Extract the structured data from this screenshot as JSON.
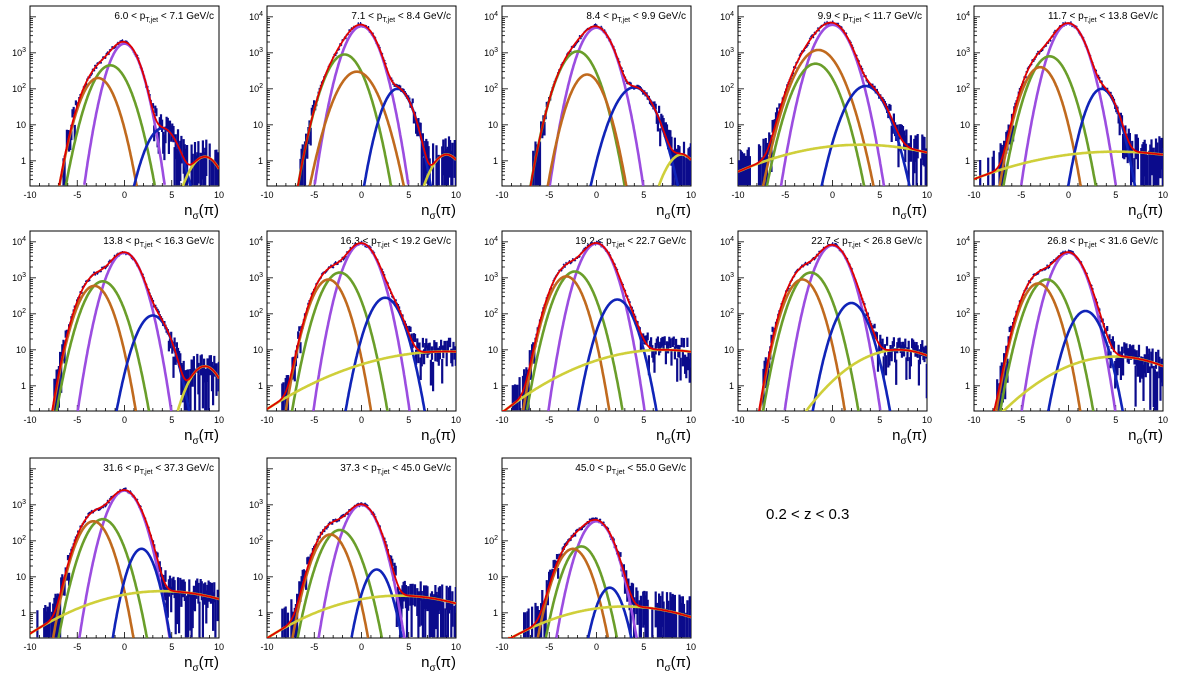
{
  "figure": {
    "z_range_label": "0.2 < z < 0.3",
    "x_axis_label": "nσ(π)"
  },
  "colors": {
    "data": "#0b0b8c",
    "total_fit": "#e00000",
    "pion": "#9b4de0",
    "kaon": "#6a9e2a",
    "proton": "#c06a1e",
    "electron": "#1024b8",
    "background": "#cfcf3a"
  },
  "chart_data": [
    {
      "type": "line",
      "panel_label": "6.0 < pT,jet < 7.1 GeV/c",
      "pt_lo": "6.0",
      "pt_hi": "7.1",
      "xlim": [
        -10,
        10
      ],
      "ylog": true,
      "ylim": [
        0.2,
        20000
      ],
      "yticks": [
        1,
        10,
        100,
        1000
      ],
      "series": [
        {
          "key": "pion",
          "mu": 0,
          "sigma": 1,
          "amp": 1800
        },
        {
          "key": "kaon",
          "mu": -1.5,
          "sigma": 1.2,
          "amp": 450
        },
        {
          "key": "proton",
          "mu": -2.8,
          "sigma": 1.1,
          "amp": 200
        },
        {
          "key": "electron",
          "mu": 4,
          "sigma": 1.1,
          "amp": 8
        },
        {
          "key": "background",
          "mu": 8.5,
          "sigma": 1.2,
          "amp": 1.3
        }
      ]
    },
    {
      "type": "line",
      "panel_label": "7.1 < pT,jet < 8.4 GeV/c",
      "pt_lo": "7.1",
      "pt_hi": "8.4",
      "xlim": [
        -10,
        10
      ],
      "ylog": true,
      "ylim": [
        0.2,
        20000
      ],
      "yticks": [
        1,
        10,
        100,
        1000,
        10000
      ],
      "series": [
        {
          "key": "pion",
          "mu": 0,
          "sigma": 1.1,
          "amp": 5500
        },
        {
          "key": "kaon",
          "mu": -1.8,
          "sigma": 1.2,
          "amp": 900
        },
        {
          "key": "proton",
          "mu": -0.5,
          "sigma": 1.3,
          "amp": 300
        },
        {
          "key": "electron",
          "mu": 3.8,
          "sigma": 1,
          "amp": 100
        },
        {
          "key": "background",
          "mu": 9,
          "sigma": 1.2,
          "amp": 1.5
        }
      ]
    },
    {
      "type": "line",
      "panel_label": "8.4 < pT,jet < 9.9 GeV/c",
      "pt_lo": "8.4",
      "pt_hi": "9.9",
      "xlim": [
        -10,
        10
      ],
      "ylog": true,
      "ylim": [
        0.2,
        20000
      ],
      "yticks": [
        1,
        10,
        100,
        1000,
        10000
      ],
      "series": [
        {
          "key": "pion",
          "mu": 0,
          "sigma": 1.1,
          "amp": 5000
        },
        {
          "key": "kaon",
          "mu": -2,
          "sigma": 1.2,
          "amp": 1100
        },
        {
          "key": "proton",
          "mu": -1,
          "sigma": 1.1,
          "amp": 250
        },
        {
          "key": "electron",
          "mu": 4,
          "sigma": 1.3,
          "amp": 110
        },
        {
          "key": "background",
          "mu": 9,
          "sigma": 1.2,
          "amp": 1.5
        }
      ]
    },
    {
      "type": "line",
      "panel_label": "9.9 < pT,jet < 11.7 GeV/c",
      "pt_lo": "9.9",
      "pt_hi": "11.7",
      "xlim": [
        -10,
        10
      ],
      "ylog": true,
      "ylim": [
        0.2,
        20000
      ],
      "yticks": [
        1,
        10,
        100,
        1000,
        10000
      ],
      "series": [
        {
          "key": "pion",
          "mu": 0,
          "sigma": 1.2,
          "amp": 6000
        },
        {
          "key": "kaon",
          "mu": -1.8,
          "sigma": 1.3,
          "amp": 500
        },
        {
          "key": "proton",
          "mu": -1.5,
          "sigma": 1.4,
          "amp": 1200
        },
        {
          "key": "electron",
          "mu": 3.5,
          "sigma": 1.3,
          "amp": 120
        },
        {
          "key": "background",
          "mu": 3,
          "sigma": 7,
          "amp": 2.8
        }
      ]
    },
    {
      "type": "line",
      "panel_label": "11.7 < pT,jet < 13.8 GeV/c",
      "pt_lo": "11.7",
      "pt_hi": "13.8",
      "xlim": [
        -10,
        10
      ],
      "ylog": true,
      "ylim": [
        0.2,
        20000
      ],
      "yticks": [
        1,
        10,
        100,
        1000,
        10000
      ],
      "series": [
        {
          "key": "pion",
          "mu": 0,
          "sigma": 1.1,
          "amp": 6500
        },
        {
          "key": "kaon",
          "mu": -2,
          "sigma": 1.2,
          "amp": 800
        },
        {
          "key": "proton",
          "mu": -3,
          "sigma": 1.1,
          "amp": 400
        },
        {
          "key": "electron",
          "mu": 3.5,
          "sigma": 1,
          "amp": 100
        },
        {
          "key": "background",
          "mu": 5,
          "sigma": 8,
          "amp": 1.8
        }
      ]
    },
    {
      "type": "line",
      "panel_label": "13.8 < pT,jet < 16.3 GeV/c",
      "pt_lo": "13.8",
      "pt_hi": "16.3",
      "xlim": [
        -10,
        10
      ],
      "ylog": true,
      "ylim": [
        0.2,
        20000
      ],
      "yticks": [
        1,
        10,
        100,
        1000,
        10000
      ],
      "series": [
        {
          "key": "pion",
          "mu": 0,
          "sigma": 1.1,
          "amp": 5000
        },
        {
          "key": "kaon",
          "mu": -2.3,
          "sigma": 1.2,
          "amp": 800
        },
        {
          "key": "proton",
          "mu": -3.2,
          "sigma": 1.1,
          "amp": 600
        },
        {
          "key": "electron",
          "mu": 3,
          "sigma": 1.1,
          "amp": 90
        },
        {
          "key": "background",
          "mu": 8.5,
          "sigma": 1.2,
          "amp": 3.5
        }
      ]
    },
    {
      "type": "line",
      "panel_label": "16.3 < pT,jet < 19.2 GeV/c",
      "pt_lo": "16.3",
      "pt_hi": "19.2",
      "xlim": [
        -10,
        10
      ],
      "ylog": true,
      "ylim": [
        0.2,
        20000
      ],
      "yticks": [
        1,
        10,
        100,
        1000,
        10000
      ],
      "series": [
        {
          "key": "pion",
          "mu": 0,
          "sigma": 1.1,
          "amp": 9000
        },
        {
          "key": "kaon",
          "mu": -2.3,
          "sigma": 1.2,
          "amp": 1400
        },
        {
          "key": "proton",
          "mu": -3.5,
          "sigma": 1.1,
          "amp": 900
        },
        {
          "key": "electron",
          "mu": 2.5,
          "sigma": 1.1,
          "amp": 280
        },
        {
          "key": "background",
          "mu": 9,
          "sigma": 7,
          "amp": 9
        }
      ]
    },
    {
      "type": "line",
      "panel_label": "19.2 < pT,jet < 22.7 GeV/c",
      "pt_lo": "19.2",
      "pt_hi": "22.7",
      "xlim": [
        -10,
        10
      ],
      "ylog": true,
      "ylim": [
        0.2,
        20000
      ],
      "yticks": [
        1,
        10,
        100,
        1000,
        10000
      ],
      "series": [
        {
          "key": "pion",
          "mu": 0,
          "sigma": 1.1,
          "amp": 9000
        },
        {
          "key": "kaon",
          "mu": -2.3,
          "sigma": 1.2,
          "amp": 1500
        },
        {
          "key": "proton",
          "mu": -3.2,
          "sigma": 1.1,
          "amp": 1100
        },
        {
          "key": "electron",
          "mu": 2.2,
          "sigma": 1.1,
          "amp": 250
        },
        {
          "key": "background",
          "mu": 7,
          "sigma": 6,
          "amp": 10
        }
      ]
    },
    {
      "type": "line",
      "panel_label": "22.7 < pT,jet < 26.8 GeV/c",
      "pt_lo": "22.7",
      "pt_hi": "26.8",
      "xlim": [
        -10,
        10
      ],
      "ylog": true,
      "ylim": [
        0.2,
        20000
      ],
      "yticks": [
        1,
        10,
        100,
        1000,
        10000
      ],
      "series": [
        {
          "key": "pion",
          "mu": 0,
          "sigma": 1.1,
          "amp": 8000
        },
        {
          "key": "kaon",
          "mu": -2.3,
          "sigma": 1.2,
          "amp": 1400
        },
        {
          "key": "proton",
          "mu": -3.2,
          "sigma": 1.1,
          "amp": 900
        },
        {
          "key": "electron",
          "mu": 2,
          "sigma": 1.1,
          "amp": 200
        },
        {
          "key": "background",
          "mu": 7,
          "sigma": 3.5,
          "amp": 10
        }
      ]
    },
    {
      "type": "line",
      "panel_label": "26.8 < pT,jet < 31.6 GeV/c",
      "pt_lo": "26.8",
      "pt_hi": "31.6",
      "xlim": [
        -10,
        10
      ],
      "ylog": true,
      "ylim": [
        0.2,
        20000
      ],
      "yticks": [
        1,
        10,
        100,
        1000,
        10000
      ],
      "series": [
        {
          "key": "pion",
          "mu": 0,
          "sigma": 1.1,
          "amp": 5000
        },
        {
          "key": "kaon",
          "mu": -2.3,
          "sigma": 1.2,
          "amp": 900
        },
        {
          "key": "proton",
          "mu": -3.2,
          "sigma": 1.1,
          "amp": 700
        },
        {
          "key": "electron",
          "mu": 1.8,
          "sigma": 1.1,
          "amp": 120
        },
        {
          "key": "background",
          "mu": 5,
          "sigma": 4.5,
          "amp": 6.5
        }
      ]
    },
    {
      "type": "line",
      "panel_label": "31.6 < pT,jet < 37.3 GeV/c",
      "pt_lo": "31.6",
      "pt_hi": "37.3",
      "xlim": [
        -10,
        10
      ],
      "ylog": true,
      "ylim": [
        0.2,
        20000
      ],
      "yticks": [
        1,
        10,
        100,
        1000
      ],
      "series": [
        {
          "key": "pion",
          "mu": 0,
          "sigma": 1.1,
          "amp": 2500
        },
        {
          "key": "kaon",
          "mu": -2.3,
          "sigma": 1.2,
          "amp": 400
        },
        {
          "key": "proton",
          "mu": -3.3,
          "sigma": 1.1,
          "amp": 350
        },
        {
          "key": "electron",
          "mu": 1.8,
          "sigma": 0.9,
          "amp": 60
        },
        {
          "key": "background",
          "mu": 4,
          "sigma": 6,
          "amp": 4
        }
      ]
    },
    {
      "type": "line",
      "panel_label": "37.3 < pT,jet < 45.0 GeV/c",
      "pt_lo": "37.3",
      "pt_hi": "45.0",
      "xlim": [
        -10,
        10
      ],
      "ylog": true,
      "ylim": [
        0.2,
        20000
      ],
      "yticks": [
        1,
        10,
        100,
        1000
      ],
      "series": [
        {
          "key": "pion",
          "mu": 0,
          "sigma": 1.1,
          "amp": 1000
        },
        {
          "key": "kaon",
          "mu": -2.3,
          "sigma": 1.2,
          "amp": 200
        },
        {
          "key": "proton",
          "mu": -3.3,
          "sigma": 1.1,
          "amp": 150
        },
        {
          "key": "electron",
          "mu": 1.6,
          "sigma": 0.9,
          "amp": 16
        },
        {
          "key": "background",
          "mu": 4,
          "sigma": 6,
          "amp": 3
        }
      ]
    },
    {
      "type": "line",
      "panel_label": "45.0 < pT,jet < 55.0 GeV/c",
      "pt_lo": "45.0",
      "pt_hi": "55.0",
      "xlim": [
        -10,
        10
      ],
      "ylog": true,
      "ylim": [
        0.2,
        20000
      ],
      "yticks": [
        1,
        10,
        100
      ],
      "series": [
        {
          "key": "pion",
          "mu": 0,
          "sigma": 1.1,
          "amp": 350
        },
        {
          "key": "kaon",
          "mu": -1.6,
          "sigma": 1.1,
          "amp": 70
        },
        {
          "key": "proton",
          "mu": -2.5,
          "sigma": 1.1,
          "amp": 60
        },
        {
          "key": "electron",
          "mu": 1.4,
          "sigma": 0.9,
          "amp": 5
        },
        {
          "key": "background",
          "mu": 3,
          "sigma": 6,
          "amp": 1.5
        }
      ]
    }
  ]
}
